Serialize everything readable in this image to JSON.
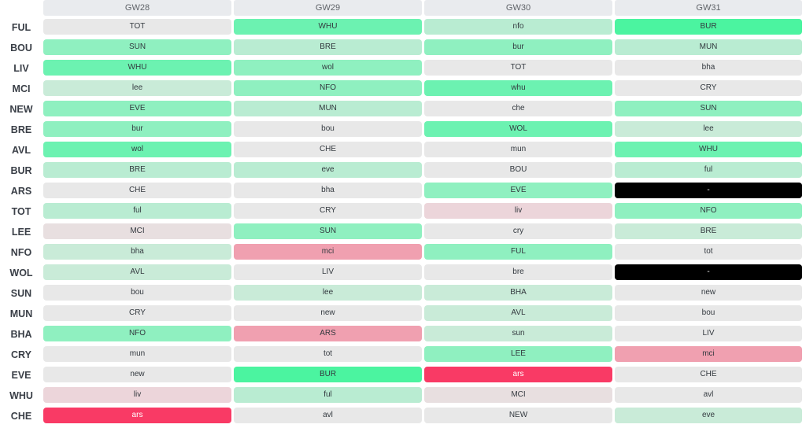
{
  "header": {
    "gameweeks": [
      "GW28",
      "GW29",
      "GW30",
      "GW31"
    ]
  },
  "colors": {
    "grey": "#e8e8e8",
    "mint_very_light": "#c9ebd8",
    "mint_light": "#b9ecd2",
    "mint": "#8ff0c0",
    "green": "#6cf2b1",
    "green_bright": "#4bf4a0",
    "pink_light": "#ecd5da",
    "pink_pale": "#e8dfe0",
    "pink": "#f0a0b0",
    "red": "#f93a65",
    "black": "#000000"
  },
  "rows": [
    {
      "team": "FUL",
      "fixtures": [
        {
          "t": "TOT",
          "c": "grey"
        },
        {
          "t": "WHU",
          "c": "green"
        },
        {
          "t": "nfo",
          "c": "mint_light"
        },
        {
          "t": "BUR",
          "c": "green_bright"
        }
      ]
    },
    {
      "team": "BOU",
      "fixtures": [
        {
          "t": "SUN",
          "c": "mint"
        },
        {
          "t": "BRE",
          "c": "mint_light"
        },
        {
          "t": "bur",
          "c": "mint"
        },
        {
          "t": "MUN",
          "c": "mint_light"
        }
      ]
    },
    {
      "team": "LIV",
      "fixtures": [
        {
          "t": "WHU",
          "c": "green"
        },
        {
          "t": "wol",
          "c": "mint"
        },
        {
          "t": "TOT",
          "c": "grey"
        },
        {
          "t": "bha",
          "c": "grey"
        }
      ]
    },
    {
      "team": "MCI",
      "fixtures": [
        {
          "t": "lee",
          "c": "mint_very_light"
        },
        {
          "t": "NFO",
          "c": "mint"
        },
        {
          "t": "whu",
          "c": "green"
        },
        {
          "t": "CRY",
          "c": "grey"
        }
      ]
    },
    {
      "team": "NEW",
      "fixtures": [
        {
          "t": "EVE",
          "c": "mint"
        },
        {
          "t": "MUN",
          "c": "mint_light"
        },
        {
          "t": "che",
          "c": "grey"
        },
        {
          "t": "SUN",
          "c": "mint"
        }
      ]
    },
    {
      "team": "BRE",
      "fixtures": [
        {
          "t": "bur",
          "c": "mint"
        },
        {
          "t": "bou",
          "c": "grey"
        },
        {
          "t": "WOL",
          "c": "green"
        },
        {
          "t": "lee",
          "c": "mint_very_light"
        }
      ]
    },
    {
      "team": "AVL",
      "fixtures": [
        {
          "t": "wol",
          "c": "green"
        },
        {
          "t": "CHE",
          "c": "grey"
        },
        {
          "t": "mun",
          "c": "grey"
        },
        {
          "t": "WHU",
          "c": "green"
        }
      ]
    },
    {
      "team": "BUR",
      "fixtures": [
        {
          "t": "BRE",
          "c": "mint_light"
        },
        {
          "t": "eve",
          "c": "mint_light"
        },
        {
          "t": "BOU",
          "c": "grey"
        },
        {
          "t": "ful",
          "c": "mint_light"
        }
      ]
    },
    {
      "team": "ARS",
      "fixtures": [
        {
          "t": "CHE",
          "c": "grey"
        },
        {
          "t": "bha",
          "c": "grey"
        },
        {
          "t": "EVE",
          "c": "mint"
        },
        {
          "t": "-",
          "c": "black"
        }
      ]
    },
    {
      "team": "TOT",
      "fixtures": [
        {
          "t": "ful",
          "c": "mint_light"
        },
        {
          "t": "CRY",
          "c": "grey"
        },
        {
          "t": "liv",
          "c": "pink_light"
        },
        {
          "t": "NFO",
          "c": "mint"
        }
      ]
    },
    {
      "team": "LEE",
      "fixtures": [
        {
          "t": "MCI",
          "c": "pink_pale"
        },
        {
          "t": "SUN",
          "c": "mint"
        },
        {
          "t": "cry",
          "c": "grey"
        },
        {
          "t": "BRE",
          "c": "mint_very_light"
        }
      ]
    },
    {
      "team": "NFO",
      "fixtures": [
        {
          "t": "bha",
          "c": "mint_very_light"
        },
        {
          "t": "mci",
          "c": "pink"
        },
        {
          "t": "FUL",
          "c": "mint"
        },
        {
          "t": "tot",
          "c": "grey"
        }
      ]
    },
    {
      "team": "WOL",
      "fixtures": [
        {
          "t": "AVL",
          "c": "mint_very_light"
        },
        {
          "t": "LIV",
          "c": "grey"
        },
        {
          "t": "bre",
          "c": "grey"
        },
        {
          "t": "-",
          "c": "black"
        }
      ]
    },
    {
      "team": "SUN",
      "fixtures": [
        {
          "t": "bou",
          "c": "grey"
        },
        {
          "t": "lee",
          "c": "mint_very_light"
        },
        {
          "t": "BHA",
          "c": "mint_very_light"
        },
        {
          "t": "new",
          "c": "grey"
        }
      ]
    },
    {
      "team": "MUN",
      "fixtures": [
        {
          "t": "CRY",
          "c": "grey"
        },
        {
          "t": "new",
          "c": "grey"
        },
        {
          "t": "AVL",
          "c": "mint_very_light"
        },
        {
          "t": "bou",
          "c": "grey"
        }
      ]
    },
    {
      "team": "BHA",
      "fixtures": [
        {
          "t": "NFO",
          "c": "mint"
        },
        {
          "t": "ARS",
          "c": "pink"
        },
        {
          "t": "sun",
          "c": "mint_very_light"
        },
        {
          "t": "LIV",
          "c": "grey"
        }
      ]
    },
    {
      "team": "CRY",
      "fixtures": [
        {
          "t": "mun",
          "c": "grey"
        },
        {
          "t": "tot",
          "c": "grey"
        },
        {
          "t": "LEE",
          "c": "mint"
        },
        {
          "t": "mci",
          "c": "pink"
        }
      ]
    },
    {
      "team": "EVE",
      "fixtures": [
        {
          "t": "new",
          "c": "grey"
        },
        {
          "t": "BUR",
          "c": "green_bright"
        },
        {
          "t": "ars",
          "c": "red"
        },
        {
          "t": "CHE",
          "c": "grey"
        }
      ]
    },
    {
      "team": "WHU",
      "fixtures": [
        {
          "t": "liv",
          "c": "pink_light"
        },
        {
          "t": "ful",
          "c": "mint_light"
        },
        {
          "t": "MCI",
          "c": "pink_pale"
        },
        {
          "t": "avl",
          "c": "grey"
        }
      ]
    },
    {
      "team": "CHE",
      "fixtures": [
        {
          "t": "ars",
          "c": "red"
        },
        {
          "t": "avl",
          "c": "grey"
        },
        {
          "t": "NEW",
          "c": "grey"
        },
        {
          "t": "eve",
          "c": "mint_very_light"
        }
      ]
    }
  ]
}
